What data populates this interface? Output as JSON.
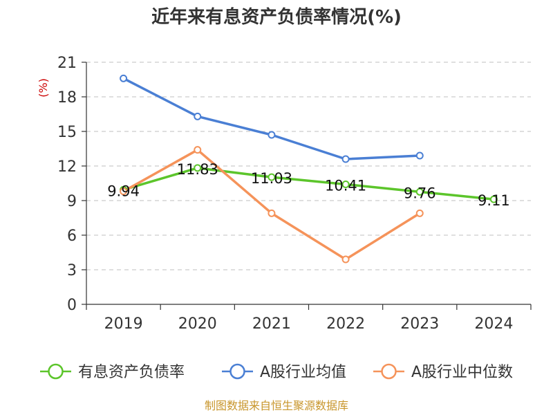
{
  "chart_data": {
    "type": "line",
    "title": "近年来有息资产负债率情况(%)",
    "y_unit": "(%)",
    "categories": [
      "2019",
      "2020",
      "2021",
      "2022",
      "2023",
      "2024"
    ],
    "ylim": [
      0,
      21
    ],
    "yticks": [
      0,
      3,
      6,
      9,
      12,
      15,
      18,
      21
    ],
    "grid": true,
    "legend_position": "bottom",
    "series": [
      {
        "name": "有息资产负债率",
        "color": "#5cc52b",
        "values": [
          9.94,
          11.83,
          11.03,
          10.41,
          9.76,
          9.11
        ],
        "labels": [
          "9.94",
          "11.83",
          "11.03",
          "10.41",
          "9.76",
          "9.11"
        ]
      },
      {
        "name": "A股行业均值",
        "color": "#4a7fd4",
        "values": [
          19.6,
          16.3,
          14.7,
          12.6,
          12.9,
          null
        ]
      },
      {
        "name": "A股行业中位数",
        "color": "#f5935a",
        "values": [
          9.8,
          13.4,
          7.9,
          3.9,
          7.9,
          null
        ]
      }
    ]
  },
  "footer": {
    "source": "制图数据来自恒生聚源数据库"
  }
}
